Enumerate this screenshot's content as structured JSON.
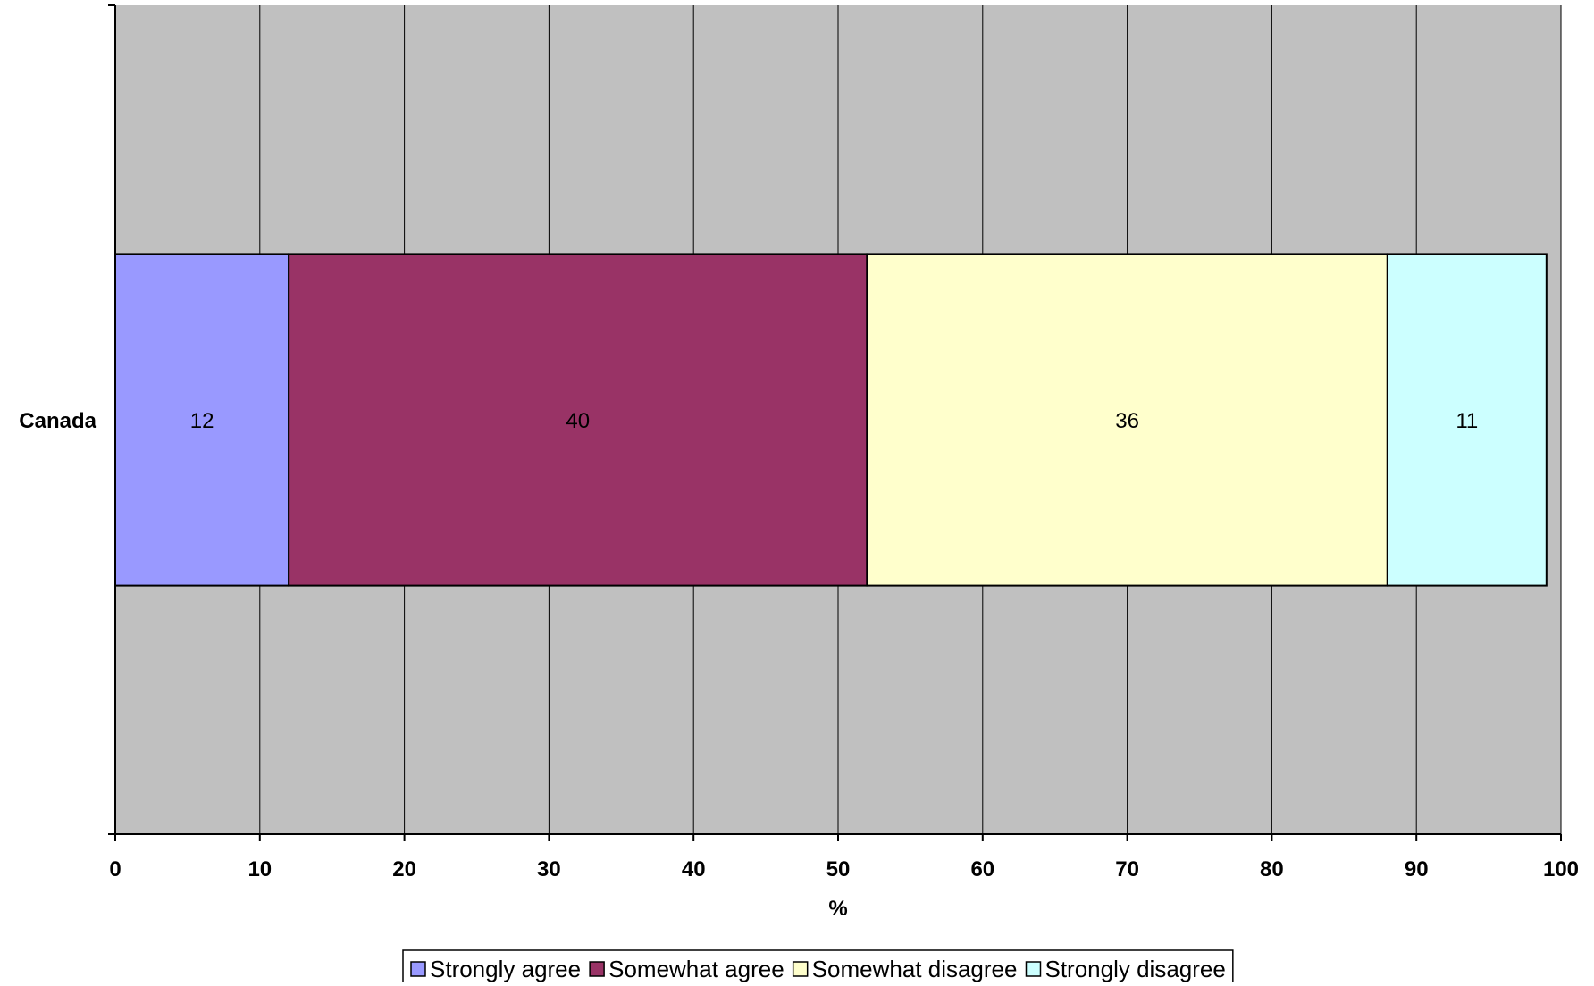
{
  "chart_data": {
    "type": "bar",
    "orientation": "horizontal",
    "stacked": true,
    "categories": [
      "Canada"
    ],
    "series": [
      {
        "name": "Strongly agree",
        "values": [
          12
        ],
        "color": "#9999FF"
      },
      {
        "name": "Somewhat agree",
        "values": [
          40
        ],
        "color": "#993366"
      },
      {
        "name": "Somewhat disagree",
        "values": [
          36
        ],
        "color": "#FFFFCC"
      },
      {
        "name": "Strongly disagree",
        "values": [
          11
        ],
        "color": "#CCFFFF"
      }
    ],
    "title": "",
    "xlabel": "%",
    "ylabel": "",
    "xlim": [
      0,
      100
    ],
    "xticks": [
      0,
      10,
      20,
      30,
      40,
      50,
      60,
      70,
      80,
      90,
      100
    ],
    "tick_labels": [
      "0",
      "10",
      "20",
      "30",
      "40",
      "50",
      "60",
      "70",
      "80",
      "90",
      "100"
    ],
    "grid": true,
    "legend": "bottom",
    "plot_background": "#C0C0C0",
    "gridline_color": "#000000"
  }
}
